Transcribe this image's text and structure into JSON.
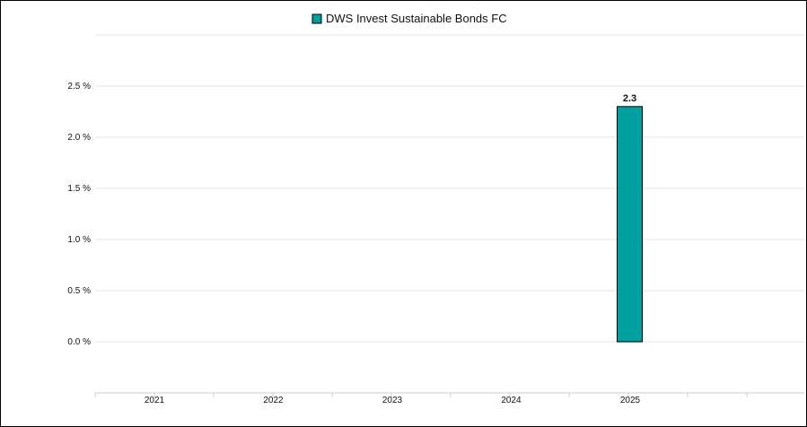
{
  "chart_data": {
    "type": "bar",
    "categories": [
      "2021",
      "2022",
      "2023",
      "2024",
      "2025"
    ],
    "series": [
      {
        "name": "DWS Invest Sustainable Bonds FC",
        "values": [
          null,
          null,
          null,
          null,
          2.3
        ],
        "color": "#00a0a0"
      }
    ],
    "data_labels": [
      "",
      "",
      "",
      "",
      "2.3"
    ],
    "y_ticks": [
      "0.0 %",
      "0.5 %",
      "1.0 %",
      "1.5 %",
      "2.0 %",
      "2.5 %"
    ],
    "y_tick_values": [
      0,
      0.5,
      1.0,
      1.5,
      2.0,
      2.5
    ],
    "ylim": [
      0,
      2.5
    ],
    "title": "",
    "xlabel": "",
    "ylabel": "",
    "legend_position": "top-center",
    "grid": true,
    "gridline_color": "#e6e6e6",
    "bar_outline_color": "#000000"
  }
}
